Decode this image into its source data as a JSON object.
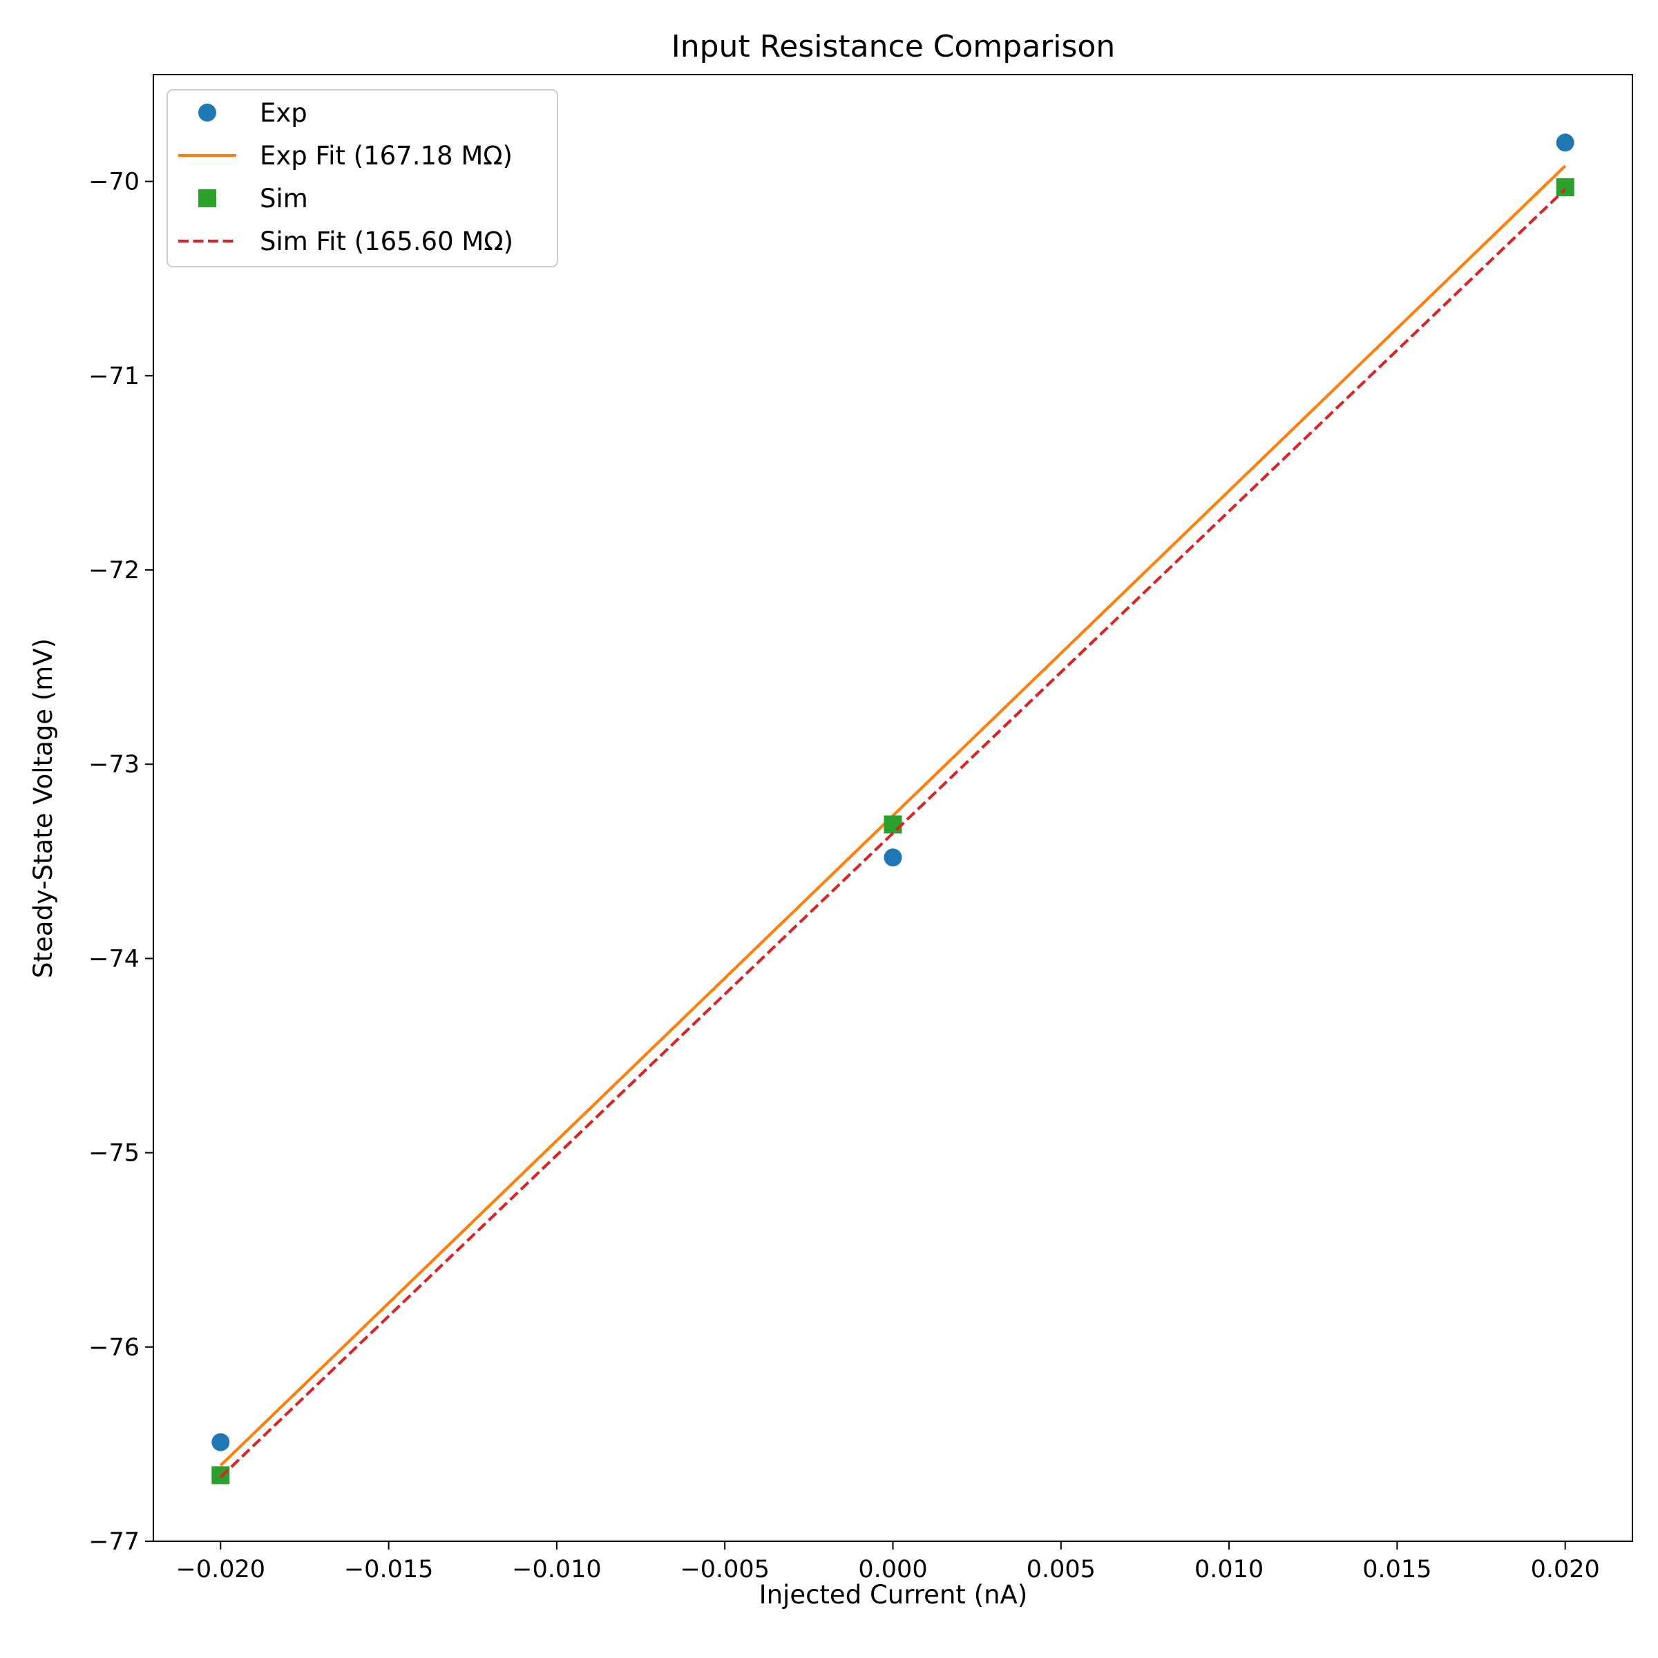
{
  "chart_data": {
    "type": "scatter",
    "title": "Input Resistance Comparison",
    "xlabel": "Injected Current (nA)",
    "ylabel": "Steady-State Voltage (mV)",
    "xlim": [
      -0.022,
      0.022
    ],
    "ylim": [
      -77.0,
      -69.45
    ],
    "x_ticks": [
      -0.02,
      -0.015,
      -0.01,
      -0.005,
      0.0,
      0.005,
      0.01,
      0.015,
      0.02
    ],
    "x_tick_labels": [
      "−0.020",
      "−0.015",
      "−0.010",
      "−0.005",
      "0.000",
      "0.005",
      "0.010",
      "0.015",
      "0.020"
    ],
    "y_ticks": [
      -77,
      -76,
      -75,
      -74,
      -73,
      -72,
      -71,
      -70
    ],
    "y_tick_labels": [
      "−77",
      "−76",
      "−75",
      "−74",
      "−73",
      "−72",
      "−71",
      "−70"
    ],
    "grid": false,
    "legend_position": "upper-left",
    "series": [
      {
        "name": "Exp",
        "kind": "points",
        "marker": "circle",
        "color": "#1f77b4",
        "x": [
          -0.02,
          0.0,
          0.02
        ],
        "y": [
          -76.49,
          -73.48,
          -69.8
        ]
      },
      {
        "name": "Exp Fit (167.18 MΩ)",
        "kind": "line",
        "style": "solid",
        "color": "#ff7f0e",
        "x": [
          -0.02,
          0.02
        ],
        "y": [
          -76.61,
          -69.92
        ]
      },
      {
        "name": "Sim",
        "kind": "points",
        "marker": "square",
        "color": "#2ca02c",
        "x": [
          -0.02,
          0.0,
          0.02
        ],
        "y": [
          -76.66,
          -73.31,
          -70.03
        ]
      },
      {
        "name": "Sim Fit (165.60 MΩ)",
        "kind": "line",
        "style": "dashed",
        "color": "#d62728",
        "x": [
          -0.02,
          0.02
        ],
        "y": [
          -76.67,
          -70.04
        ]
      }
    ]
  }
}
